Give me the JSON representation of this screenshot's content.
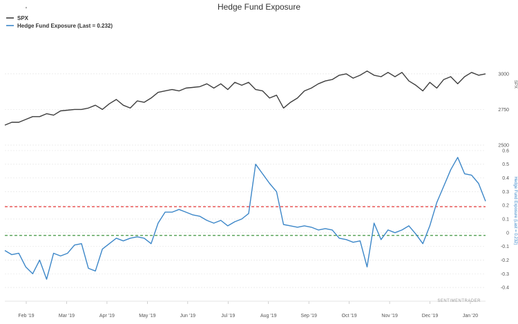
{
  "chart_data": {
    "type": "line",
    "title": "Hedge Fund Exposure",
    "watermark": "SENTIMENTRADER",
    "colors": {
      "spx": "#3d3d3d",
      "exposure": "#3b86c8",
      "upper_ref": "#e02020",
      "lower_ref": "#2a8a2a"
    },
    "legend": {
      "placement": "top-left",
      "items": [
        {
          "label": "SPX",
          "color": "#3d3d3d"
        },
        {
          "label": "Hedge Fund Exposure (Last = 0.232)",
          "color": "#3b86c8"
        }
      ]
    },
    "x_labels": [
      "Feb '19",
      "Mar '19",
      "Apr '19",
      "May '19",
      "Jun '19",
      "Jul '19",
      "Aug '19",
      "Sep '19",
      "Oct '19",
      "Nov '19",
      "Dec '19",
      "Jan '20"
    ],
    "panels": [
      {
        "name": "SPX",
        "ylabel": "SPX",
        "yticks": [
          2500,
          2750,
          3000
        ],
        "ylim": [
          2500,
          3300
        ],
        "series": [
          {
            "name": "SPX",
            "x": [
              0,
              5,
              10,
              15,
              20,
              25,
              30,
              35,
              40,
              45,
              50,
              55,
              60,
              65,
              70,
              75,
              80,
              85,
              90,
              95,
              100,
              105,
              110,
              115,
              120,
              125,
              130,
              135,
              140,
              145,
              150,
              155,
              160,
              165,
              170,
              175,
              180,
              185,
              190,
              195,
              200,
              205,
              210,
              215,
              220,
              225,
              230,
              235,
              240,
              245,
              250,
              255,
              260,
              265,
              270,
              275,
              280,
              285,
              290,
              295,
              300,
              305,
              310,
              315,
              320,
              325,
              330,
              335,
              340,
              345
            ],
            "values": [
              2640,
              2660,
              2660,
              2680,
              2700,
              2700,
              2720,
              2710,
              2740,
              2745,
              2750,
              2750,
              2760,
              2780,
              2750,
              2790,
              2820,
              2780,
              2760,
              2810,
              2800,
              2830,
              2870,
              2880,
              2890,
              2880,
              2900,
              2905,
              2910,
              2930,
              2900,
              2930,
              2890,
              2940,
              2920,
              2940,
              2890,
              2880,
              2830,
              2850,
              2760,
              2800,
              2830,
              2880,
              2900,
              2930,
              2950,
              2960,
              2990,
              3000,
              2970,
              2990,
              3020,
              2990,
              2980,
              3010,
              2980,
              3010,
              2950,
              2920,
              2880,
              2940,
              2900,
              2960,
              2980,
              2930,
              2980,
              3010,
              2990,
              3000
            ]
          }
        ]
      },
      {
        "name": "Hedge Fund Exposure",
        "ylabel": "Hedge Fund Exposure (Last = 0.232)",
        "yticks": [
          -0.4,
          -0.3,
          -0.2,
          -0.1,
          0,
          0.1,
          0.2,
          0.3,
          0.4,
          0.5,
          0.6
        ],
        "ylim": [
          -0.47,
          0.64
        ],
        "reference_lines": [
          {
            "value": 0.19,
            "color": "#e02020",
            "style": "dashed"
          },
          {
            "value": -0.02,
            "color": "#2a8a2a",
            "style": "dashed"
          }
        ],
        "series": [
          {
            "name": "Hedge Fund Exposure",
            "x": [
              0,
              5,
              10,
              15,
              20,
              25,
              30,
              35,
              40,
              45,
              50,
              55,
              60,
              65,
              70,
              75,
              80,
              85,
              90,
              95,
              100,
              105,
              110,
              115,
              120,
              125,
              130,
              135,
              140,
              145,
              150,
              155,
              160,
              165,
              170,
              175,
              180,
              185,
              190,
              195,
              200,
              205,
              210,
              215,
              220,
              225,
              230,
              235,
              240,
              245,
              250,
              255,
              260,
              265,
              270,
              275,
              280,
              285,
              290,
              295,
              300,
              305,
              310,
              315,
              320,
              325,
              330,
              335,
              340,
              345
            ],
            "values": [
              -0.13,
              -0.16,
              -0.15,
              -0.25,
              -0.3,
              -0.2,
              -0.34,
              -0.15,
              -0.17,
              -0.15,
              -0.09,
              -0.08,
              -0.26,
              -0.28,
              -0.12,
              -0.08,
              -0.04,
              -0.06,
              -0.04,
              -0.03,
              -0.04,
              -0.08,
              0.07,
              0.15,
              0.15,
              0.17,
              0.15,
              0.13,
              0.12,
              0.09,
              0.07,
              0.09,
              0.05,
              0.08,
              0.1,
              0.14,
              0.5,
              0.43,
              0.36,
              0.3,
              0.06,
              0.05,
              0.04,
              0.05,
              0.04,
              0.02,
              0.03,
              0.02,
              -0.04,
              -0.05,
              -0.07,
              -0.06,
              -0.25,
              0.07,
              -0.05,
              0.02,
              0.0,
              0.02,
              0.05,
              -0.01,
              -0.08,
              0.05,
              0.22,
              0.34,
              0.46,
              0.55,
              0.43,
              0.42,
              0.36,
              0.23
            ]
          }
        ]
      }
    ]
  }
}
